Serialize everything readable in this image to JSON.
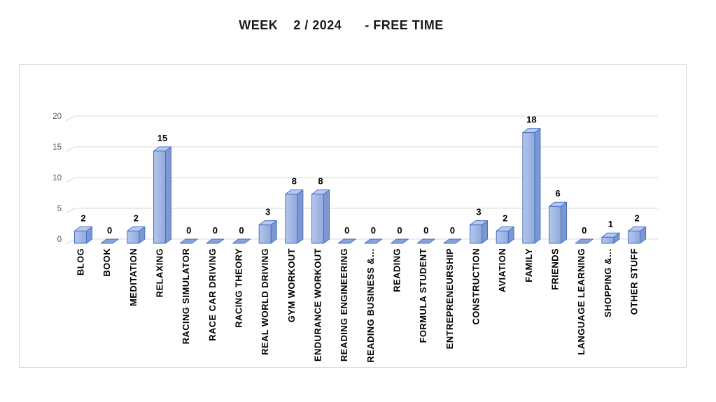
{
  "title": "WEEK    2 / 2024      - FREE TIME",
  "colors": {
    "background": "#FFFFFF",
    "title_text": "#1A1A1A",
    "frame_border": "#D9D9D9",
    "gridline": "#D9D9D9",
    "axis_tick_text": "#595959",
    "value_label": "#000000",
    "category_label": "#000000",
    "bar_front_light": "#B6C6EC",
    "bar_front_dark": "#8FAADC",
    "bar_top": "#B9C8EE",
    "bar_side": "#7D97D1",
    "bar_stroke": "#4472C4",
    "zero_marker_fill": "#8BA3D6"
  },
  "chart_data": {
    "type": "bar",
    "style": "3d-column",
    "title": "WEEK 2 / 2024 - FREE TIME",
    "xlabel": "",
    "ylabel": "",
    "ylim": [
      0,
      20
    ],
    "yticks": [
      0,
      5,
      10,
      15,
      20
    ],
    "grid": true,
    "legend": "none",
    "data_labels": true,
    "categories": [
      "BLOG",
      "BOOK",
      "MEDITATION",
      "RELAXING",
      "RACING SIMULATOR",
      "RACE CAR DRIVING",
      "RACING THEORY",
      "REAL WORLD DRIVING",
      "GYM WORKOUT",
      "ENDURANCE WORKOUT",
      "READING ENGINEERING",
      "READING BUSINESS &…",
      "READING",
      "FORMULA STUDENT",
      "ENTREPRENEURSHIP",
      "CONSTRUCTION",
      "AVIATION",
      "FAMILY",
      "FRIENDS",
      "LANGUAGE LEARNING",
      "SHOPPING &…",
      "OTHER STUFF"
    ],
    "values": [
      2,
      0,
      2,
      15,
      0,
      0,
      0,
      3,
      8,
      8,
      0,
      0,
      0,
      0,
      0,
      3,
      2,
      18,
      6,
      0,
      1,
      2
    ]
  }
}
